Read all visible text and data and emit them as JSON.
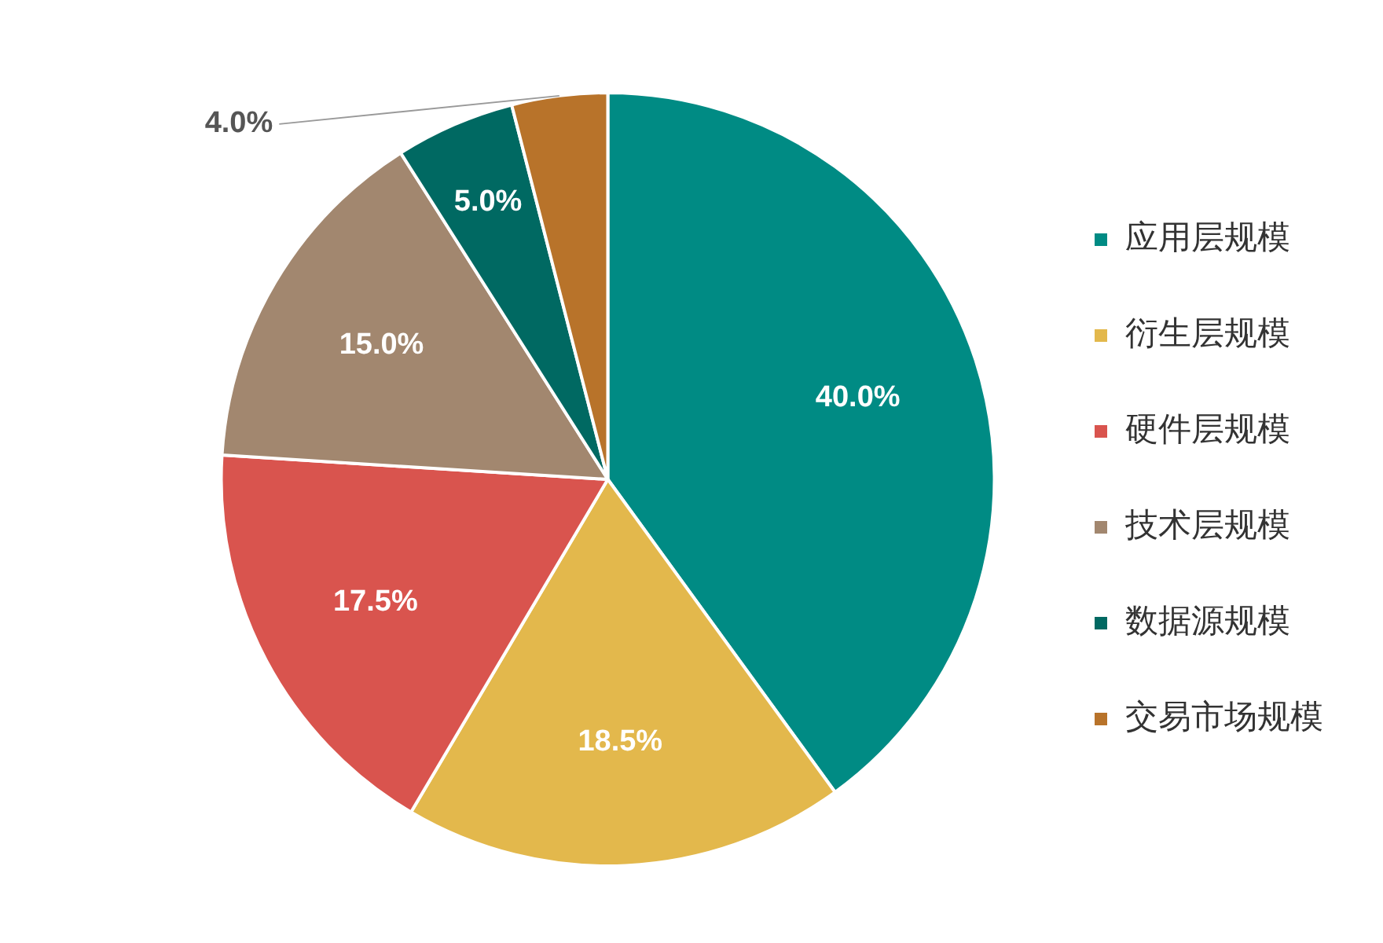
{
  "chart_data": {
    "type": "pie",
    "categories": [
      "应用层规模",
      "衍生层规模",
      "硬件层规模",
      "技术层规模",
      "数据源规模",
      "交易市场规模"
    ],
    "values": [
      40.0,
      18.5,
      17.5,
      15.0,
      5.0,
      4.0
    ],
    "colors": [
      "#008b84",
      "#e3b84c",
      "#d9544e",
      "#a2876f",
      "#006962",
      "#b8732a"
    ],
    "value_labels": [
      "40.0%",
      "18.5%",
      "17.5%",
      "15.0%",
      "5.0%",
      "4.0%"
    ],
    "legend": "right"
  }
}
